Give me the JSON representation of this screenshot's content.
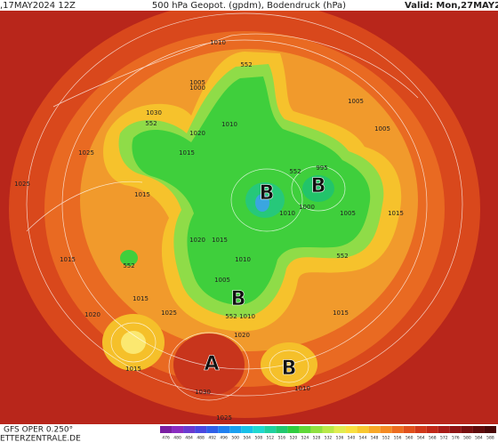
{
  "header": {
    "run": ",17MAY2024 12Z",
    "title": "500 hPa Geopot. (gpdm), Bodendruck (hPa)",
    "valid": "Valid: Mon,27MAY202"
  },
  "map": {
    "centers": [
      "B",
      "B",
      "B",
      "B",
      "A"
    ],
    "isobar_labels": [
      "1010",
      "1005",
      "1000",
      "552",
      "1030",
      "552",
      "1020",
      "1010",
      "1015",
      "1025",
      "1025",
      "1015",
      "995",
      "552",
      "1005",
      "1005",
      "1010",
      "1000",
      "1005",
      "1015",
      "1020",
      "1015",
      "1015",
      "1010",
      "552",
      "552",
      "1005",
      "1015",
      "1020",
      "1025",
      "552",
      "1010",
      "1020",
      "1015",
      "1030",
      "1010",
      "1015",
      "1025"
    ]
  },
  "colorbar": {
    "ticks": [
      476,
      480,
      484,
      488,
      492,
      496,
      500,
      504,
      508,
      512,
      516,
      520,
      524,
      528,
      532,
      536,
      540,
      544,
      548,
      552,
      556,
      560,
      564,
      568,
      572,
      576,
      580,
      584,
      588
    ]
  },
  "footer": {
    "model": "GFS OPER 0.250°",
    "source": "ETTERZENTRALE.DE"
  }
}
